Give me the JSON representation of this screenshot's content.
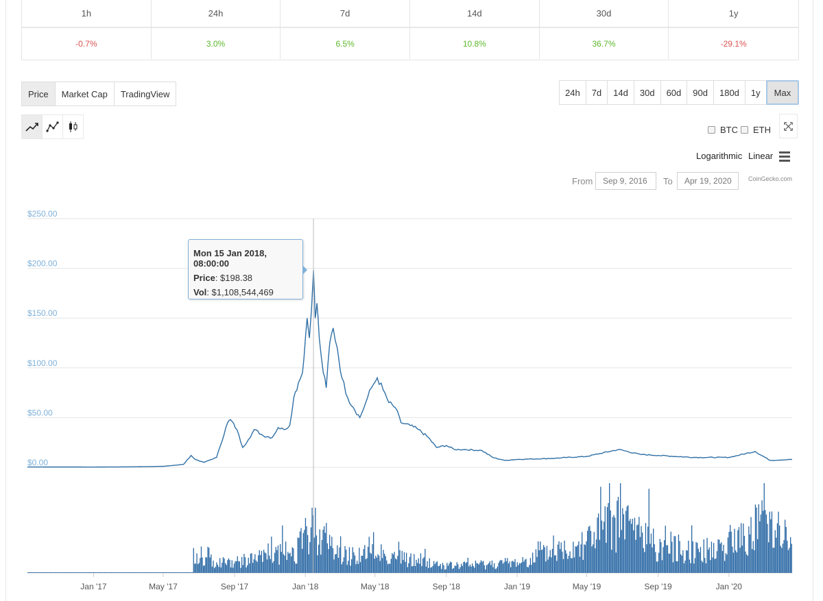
{
  "performance": {
    "headers": [
      "1h",
      "24h",
      "7d",
      "14d",
      "30d",
      "1y"
    ],
    "values": [
      "-0.7%",
      "3.0%",
      "6.5%",
      "10.8%",
      "36.7%",
      "-29.1%"
    ],
    "value_colors": [
      "#d9534f",
      "#5cb82a",
      "#5cb82a",
      "#5cb82a",
      "#5cb82a",
      "#d9534f"
    ]
  },
  "chart_tabs": {
    "items": [
      "Price",
      "Market Cap",
      "TradingView"
    ],
    "active": "Price"
  },
  "ranges": {
    "items": [
      "24h",
      "7d",
      "14d",
      "30d",
      "60d",
      "90d",
      "180d",
      "1y",
      "Max"
    ],
    "active": "Max"
  },
  "chart_types": [
    "line-chart-icon",
    "point-line-chart-icon",
    "candlestick-icon"
  ],
  "compare": {
    "btc": "BTC",
    "eth": "ETH"
  },
  "scale": {
    "log": "Logarithmic",
    "linear": "Linear"
  },
  "date_range": {
    "from_label": "From",
    "from_value": "Sep 9, 2016",
    "to_label": "To",
    "to_value": "Apr 19, 2020"
  },
  "credit": "CoinGecko.com",
  "tooltip": {
    "title": "Mon 15 Jan 2018, 08:00:00",
    "price_label": "Price",
    "price_value": "$198.38",
    "vol_label": "Vol",
    "vol_value": "$1,108,544,469"
  },
  "colors": {
    "line": "#2f6fa5",
    "volume": "#2766a3",
    "axis_label": "#7fb1d9",
    "grid": "#e6e6e6"
  },
  "chart_data": {
    "type": "line",
    "title": "",
    "y_ticks": [
      "$250.00",
      "$200.00",
      "$150.00",
      "$100.00",
      "$50.00",
      "$0.00"
    ],
    "y_tick_values": [
      250,
      200,
      150,
      100,
      50,
      0
    ],
    "ylim": [
      0,
      250
    ],
    "x_ticks": [
      "Jan '17",
      "May '17",
      "Sep '17",
      "Jan '18",
      "May '18",
      "Sep '18",
      "Jan '19",
      "May '19",
      "Sep '19",
      "Jan '20"
    ],
    "x_tick_dates": [
      "2017-01-01",
      "2017-05-01",
      "2017-09-01",
      "2018-01-01",
      "2018-05-01",
      "2018-09-01",
      "2019-01-01",
      "2019-05-01",
      "2019-09-01",
      "2020-01-01"
    ],
    "xlim": [
      "2016-09-09",
      "2020-04-19"
    ],
    "series": [
      {
        "values_type": "price_usd",
        "points": [
          [
            "2016-09-09",
            0.4
          ],
          [
            "2017-01-01",
            0.3
          ],
          [
            "2017-03-01",
            0.5
          ],
          [
            "2017-05-01",
            1.0
          ],
          [
            "2017-06-05",
            3
          ],
          [
            "2017-06-18",
            12
          ],
          [
            "2017-06-25",
            8
          ],
          [
            "2017-07-10",
            5
          ],
          [
            "2017-08-01",
            10
          ],
          [
            "2017-08-20",
            45
          ],
          [
            "2017-08-25",
            48
          ],
          [
            "2017-09-05",
            38
          ],
          [
            "2017-09-15",
            20
          ],
          [
            "2017-09-25",
            28
          ],
          [
            "2017-10-05",
            38
          ],
          [
            "2017-10-20",
            32
          ],
          [
            "2017-11-05",
            30
          ],
          [
            "2017-11-15",
            40
          ],
          [
            "2017-11-25",
            38
          ],
          [
            "2017-12-05",
            42
          ],
          [
            "2017-12-12",
            70
          ],
          [
            "2017-12-20",
            85
          ],
          [
            "2017-12-27",
            95
          ],
          [
            "2018-01-04",
            150
          ],
          [
            "2018-01-08",
            130
          ],
          [
            "2018-01-15",
            198.38
          ],
          [
            "2018-01-18",
            150
          ],
          [
            "2018-01-21",
            165
          ],
          [
            "2018-01-25",
            130
          ],
          [
            "2018-02-01",
            95
          ],
          [
            "2018-02-06",
            80
          ],
          [
            "2018-02-12",
            125
          ],
          [
            "2018-02-18",
            140
          ],
          [
            "2018-02-25",
            120
          ],
          [
            "2018-03-05",
            90
          ],
          [
            "2018-03-15",
            70
          ],
          [
            "2018-03-25",
            60
          ],
          [
            "2018-04-05",
            50
          ],
          [
            "2018-04-15",
            65
          ],
          [
            "2018-04-25",
            80
          ],
          [
            "2018-05-05",
            90
          ],
          [
            "2018-05-15",
            78
          ],
          [
            "2018-05-25",
            65
          ],
          [
            "2018-06-05",
            60
          ],
          [
            "2018-06-15",
            45
          ],
          [
            "2018-07-01",
            42
          ],
          [
            "2018-07-15",
            38
          ],
          [
            "2018-08-01",
            30
          ],
          [
            "2018-08-15",
            20
          ],
          [
            "2018-09-01",
            22
          ],
          [
            "2018-09-15",
            18
          ],
          [
            "2018-10-01",
            18
          ],
          [
            "2018-11-01",
            17
          ],
          [
            "2018-11-20",
            10
          ],
          [
            "2018-12-10",
            7
          ],
          [
            "2019-01-01",
            8
          ],
          [
            "2019-03-01",
            9
          ],
          [
            "2019-05-01",
            11
          ],
          [
            "2019-06-25",
            18
          ],
          [
            "2019-08-01",
            13
          ],
          [
            "2019-09-01",
            12
          ],
          [
            "2019-11-01",
            10
          ],
          [
            "2020-01-01",
            10
          ],
          [
            "2020-02-15",
            16
          ],
          [
            "2020-03-12",
            7
          ],
          [
            "2020-04-19",
            8
          ]
        ]
      },
      {
        "values_type": "volume_relative",
        "points": [
          [
            "2017-06-20",
            0.15
          ],
          [
            "2017-09-01",
            0.12
          ],
          [
            "2017-12-15",
            0.25
          ],
          [
            "2018-01-15",
            0.55
          ],
          [
            "2018-03-01",
            0.2
          ],
          [
            "2018-05-01",
            0.22
          ],
          [
            "2018-09-01",
            0.08
          ],
          [
            "2019-01-01",
            0.12
          ],
          [
            "2019-04-01",
            0.3
          ],
          [
            "2019-07-01",
            0.6
          ],
          [
            "2019-09-01",
            0.3
          ],
          [
            "2019-12-01",
            0.25
          ],
          [
            "2020-02-01",
            0.45
          ],
          [
            "2020-03-15",
            0.65
          ],
          [
            "2020-04-19",
            0.25
          ]
        ]
      }
    ]
  }
}
